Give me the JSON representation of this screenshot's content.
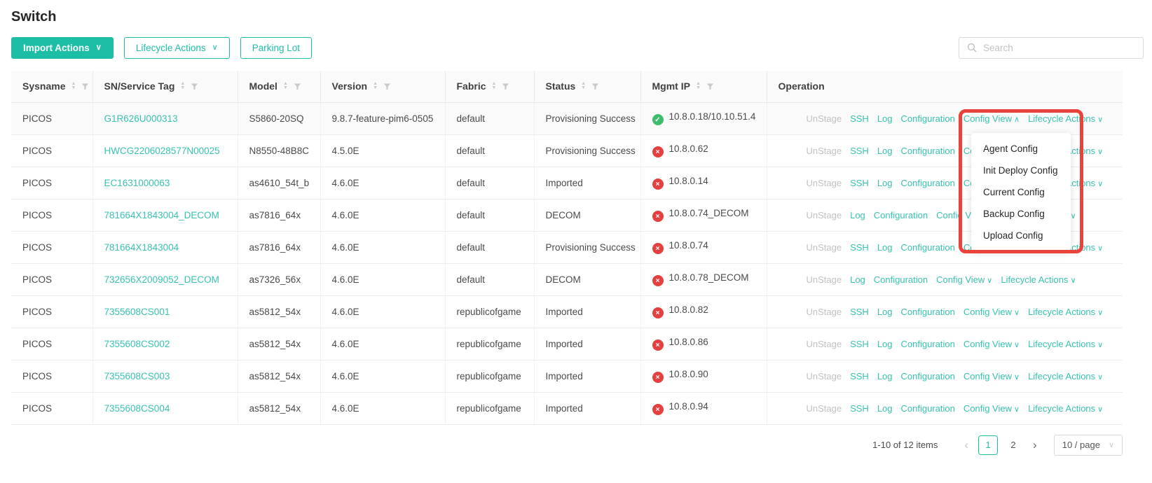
{
  "page": {
    "title": "Switch"
  },
  "toolbar": {
    "import_actions": "Import Actions",
    "lifecycle_actions": "Lifecycle Actions",
    "parking_lot": "Parking Lot",
    "search_placeholder": "Search"
  },
  "table": {
    "columns": [
      {
        "label": "Sysname",
        "sortable": true,
        "filterable": true
      },
      {
        "label": "SN/Service Tag",
        "sortable": true,
        "filterable": true
      },
      {
        "label": "Model",
        "sortable": true,
        "filterable": true
      },
      {
        "label": "Version",
        "sortable": true,
        "filterable": true
      },
      {
        "label": "Fabric",
        "sortable": true,
        "filterable": true
      },
      {
        "label": "Status",
        "sortable": true,
        "filterable": true
      },
      {
        "label": "Mgmt IP",
        "sortable": true,
        "filterable": true
      },
      {
        "label": "Operation",
        "sortable": false,
        "filterable": false
      }
    ],
    "rows": [
      {
        "sysname": "PICOS",
        "sn": "G1R626U000313",
        "model": "S5860-20SQ",
        "version": "9.8.7-feature-pim6-0505",
        "fabric": "default",
        "status": "Provisioning Success",
        "mgmt_status": "success",
        "mgmt_ip": "10.8.0.18/10.10.51.4",
        "active": true,
        "ops": [
          {
            "label": "UnStage",
            "style": "muted"
          },
          {
            "label": "SSH",
            "style": "link"
          },
          {
            "label": "Log",
            "style": "link"
          },
          {
            "label": "Configuration",
            "style": "link"
          },
          {
            "label": "Config View",
            "style": "link",
            "caret": "up"
          },
          {
            "label": "Lifecycle Actions",
            "style": "link",
            "caret": "down"
          }
        ]
      },
      {
        "sysname": "PICOS",
        "sn": "HWCG2206028577N00025",
        "model": "N8550-48B8C",
        "version": "4.5.0E",
        "fabric": "default",
        "status": "Provisioning Success",
        "mgmt_status": "error",
        "mgmt_ip": "10.8.0.62",
        "active": false,
        "ops": [
          {
            "label": "UnStage",
            "style": "muted"
          },
          {
            "label": "SSH",
            "style": "link"
          },
          {
            "label": "Log",
            "style": "link"
          },
          {
            "label": "Configuration",
            "style": "link"
          },
          {
            "label": "Config View",
            "style": "link",
            "caret": "down"
          },
          {
            "label": "Lifecycle Actions",
            "style": "link",
            "caret": "down"
          }
        ]
      },
      {
        "sysname": "PICOS",
        "sn": "EC1631000063",
        "model": "as4610_54t_b",
        "version": "4.6.0E",
        "fabric": "default",
        "status": "Imported",
        "mgmt_status": "error",
        "mgmt_ip": "10.8.0.14",
        "active": false,
        "ops": [
          {
            "label": "UnStage",
            "style": "muted"
          },
          {
            "label": "SSH",
            "style": "link"
          },
          {
            "label": "Log",
            "style": "link"
          },
          {
            "label": "Configuration",
            "style": "link"
          },
          {
            "label": "Config View",
            "style": "link",
            "caret": "down"
          },
          {
            "label": "Lifecycle Actions",
            "style": "link",
            "caret": "down"
          }
        ]
      },
      {
        "sysname": "PICOS",
        "sn": "781664X1843004_DECOM",
        "model": "as7816_64x",
        "version": "4.6.0E",
        "fabric": "default",
        "status": "DECOM",
        "mgmt_status": "error",
        "mgmt_ip": "10.8.0.74_DECOM",
        "active": false,
        "ops": [
          {
            "label": "UnStage",
            "style": "muted"
          },
          {
            "label": "Log",
            "style": "link"
          },
          {
            "label": "Configuration",
            "style": "link"
          },
          {
            "label": "Config View",
            "style": "link",
            "caret": "down"
          },
          {
            "label": "Lifecycle Actions",
            "style": "link",
            "caret": "down"
          }
        ]
      },
      {
        "sysname": "PICOS",
        "sn": "781664X1843004",
        "model": "as7816_64x",
        "version": "4.6.0E",
        "fabric": "default",
        "status": "Provisioning Success",
        "mgmt_status": "error",
        "mgmt_ip": "10.8.0.74",
        "active": false,
        "ops": [
          {
            "label": "UnStage",
            "style": "muted"
          },
          {
            "label": "SSH",
            "style": "link"
          },
          {
            "label": "Log",
            "style": "link"
          },
          {
            "label": "Configuration",
            "style": "link"
          },
          {
            "label": "Config View",
            "style": "link",
            "caret": "down"
          },
          {
            "label": "Lifecycle Actions",
            "style": "link",
            "caret": "down"
          }
        ]
      },
      {
        "sysname": "PICOS",
        "sn": "732656X2009052_DECOM",
        "model": "as7326_56x",
        "version": "4.6.0E",
        "fabric": "default",
        "status": "DECOM",
        "mgmt_status": "error",
        "mgmt_ip": "10.8.0.78_DECOM",
        "active": false,
        "ops": [
          {
            "label": "UnStage",
            "style": "muted"
          },
          {
            "label": "Log",
            "style": "link"
          },
          {
            "label": "Configuration",
            "style": "link"
          },
          {
            "label": "Config View",
            "style": "link",
            "caret": "down"
          },
          {
            "label": "Lifecycle Actions",
            "style": "link",
            "caret": "down"
          }
        ]
      },
      {
        "sysname": "PICOS",
        "sn": "7355608CS001",
        "model": "as5812_54x",
        "version": "4.6.0E",
        "fabric": "republicofgame",
        "status": "Imported",
        "mgmt_status": "error",
        "mgmt_ip": "10.8.0.82",
        "active": false,
        "ops": [
          {
            "label": "UnStage",
            "style": "muted"
          },
          {
            "label": "SSH",
            "style": "link"
          },
          {
            "label": "Log",
            "style": "link"
          },
          {
            "label": "Configuration",
            "style": "link"
          },
          {
            "label": "Config View",
            "style": "link",
            "caret": "down"
          },
          {
            "label": "Lifecycle Actions",
            "style": "link",
            "caret": "down"
          }
        ]
      },
      {
        "sysname": "PICOS",
        "sn": "7355608CS002",
        "model": "as5812_54x",
        "version": "4.6.0E",
        "fabric": "republicofgame",
        "status": "Imported",
        "mgmt_status": "error",
        "mgmt_ip": "10.8.0.86",
        "active": false,
        "ops": [
          {
            "label": "UnStage",
            "style": "muted"
          },
          {
            "label": "SSH",
            "style": "link"
          },
          {
            "label": "Log",
            "style": "link"
          },
          {
            "label": "Configuration",
            "style": "link"
          },
          {
            "label": "Config View",
            "style": "link",
            "caret": "down"
          },
          {
            "label": "Lifecycle Actions",
            "style": "link",
            "caret": "down"
          }
        ]
      },
      {
        "sysname": "PICOS",
        "sn": "7355608CS003",
        "model": "as5812_54x",
        "version": "4.6.0E",
        "fabric": "republicofgame",
        "status": "Imported",
        "mgmt_status": "error",
        "mgmt_ip": "10.8.0.90",
        "active": false,
        "ops": [
          {
            "label": "UnStage",
            "style": "muted"
          },
          {
            "label": "SSH",
            "style": "link"
          },
          {
            "label": "Log",
            "style": "link"
          },
          {
            "label": "Configuration",
            "style": "link"
          },
          {
            "label": "Config View",
            "style": "link",
            "caret": "down"
          },
          {
            "label": "Lifecycle Actions",
            "style": "link",
            "caret": "down"
          }
        ]
      },
      {
        "sysname": "PICOS",
        "sn": "7355608CS004",
        "model": "as5812_54x",
        "version": "4.6.0E",
        "fabric": "republicofgame",
        "status": "Imported",
        "mgmt_status": "error",
        "mgmt_ip": "10.8.0.94",
        "active": false,
        "ops": [
          {
            "label": "UnStage",
            "style": "muted"
          },
          {
            "label": "SSH",
            "style": "link"
          },
          {
            "label": "Log",
            "style": "link"
          },
          {
            "label": "Configuration",
            "style": "link"
          },
          {
            "label": "Config View",
            "style": "link",
            "caret": "down"
          },
          {
            "label": "Lifecycle Actions",
            "style": "link",
            "caret": "down"
          }
        ]
      }
    ]
  },
  "config_view_menu": {
    "items": [
      "Agent Config",
      "Init Deploy Config",
      "Current Config",
      "Backup Config",
      "Upload Config"
    ]
  },
  "pagination": {
    "total_text": "1-10 of 12 items",
    "prev": "‹",
    "next": "›",
    "pages": [
      {
        "label": "1",
        "active": true
      },
      {
        "label": "2",
        "active": false
      }
    ],
    "page_size": "10 / page"
  },
  "colors": {
    "accent": "#1cbfa6",
    "link": "#38c2b1",
    "annotation_red": "#e8433c",
    "status_green": "#3dbd6d",
    "status_red": "#e4403f",
    "disabled_text": "#c2c2c2"
  }
}
